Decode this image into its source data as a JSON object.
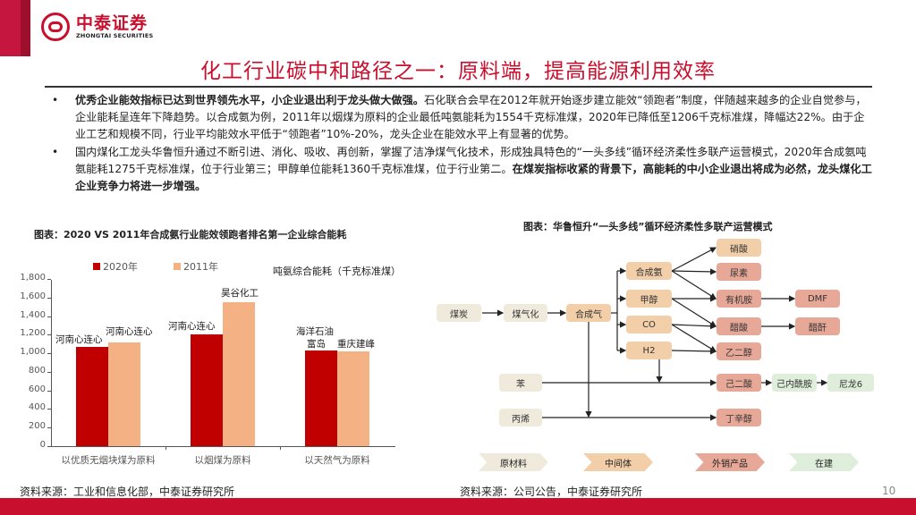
{
  "brand": {
    "name_cn": "中泰证券",
    "name_en": "ZHONGTAI SECURITIES",
    "colors": {
      "primary": "#c8102e",
      "dark_bar": "#9e0f2e",
      "bar_2020": "#c00000",
      "bar_2011": "#f4b183"
    }
  },
  "page": {
    "title": "化工行业碳中和路径之一：原料端，提高能源利用效率",
    "page_number": "10"
  },
  "bullets": [
    {
      "bold": "优秀企业能效指标已达到世界领先水平，小企业退出利于龙头做大做强。",
      "text": "石化联合会早在2012年就开始逐步建立能效“领跑者”制度，伴随越来越多的企业自觉参与，企业能耗呈连年下降趋势。以合成氨为例，2011年以烟煤为原料的企业最低吨氨能耗为1554千克标准煤，2020年已降低至1206千克标准煤，降幅达22%。由于企业工艺和规模不同，行业平均能效水平低于“领跑者”10%-20%，龙头企业在能效水平上有显著的优势。",
      "text_after": "",
      "bold_after": ""
    },
    {
      "bold": "",
      "text": "国内煤化工龙头华鲁恒升通过不断引进、消化、吸收、再创新，掌握了洁净煤气化技术，形成独具特色的“一头多线”循环经济柔性多联产运营模式，2020年合成氨吨氨能耗1275千克标准煤，位于行业第三；甲醇单位能耗1360千克标准煤，位于行业第二。",
      "bold_after": "在煤炭指标收紧的背景下，高能耗的中小企业退出将成为必然，龙头煤化工企业竞争力将进一步增强。",
      "text_after": ""
    }
  ],
  "left_figure": {
    "title": "图表：2020 VS 2011年合成氨行业能效领跑者排名第一企业综合能耗",
    "source": "资料来源：工业和信息化部，中泰证券研究所"
  },
  "right_figure": {
    "title": "图表：华鲁恒升“一头多线”循环经济柔性多联产运营模式",
    "source": "资料来源：公司公告，中泰证券研究所"
  },
  "chart_data": {
    "type": "bar",
    "title": "2020 VS 2011年合成氨行业能效领跑者排名第一企业综合能耗",
    "xlabel": "",
    "ylabel": "吨氨综合能耗（千克标准煤）",
    "ylim": [
      0,
      1800
    ],
    "yticks": [
      "0",
      "200",
      "400",
      "600",
      "800",
      "1,000",
      "1,200",
      "1,400",
      "1,600",
      "1,800"
    ],
    "categories": [
      "以优质无烟块煤为原料",
      "以烟煤为原料",
      "以天然气为原料"
    ],
    "legend": [
      "2020年",
      "2011年"
    ],
    "legend_position": "top",
    "grid": false,
    "series": [
      {
        "name": "2020年",
        "color": "#c00000",
        "values": [
          1070,
          1206,
          1030
        ],
        "labels": [
          "河南心连心",
          "河南心连心",
          "海洋石油富岛"
        ]
      },
      {
        "name": "2011年",
        "color": "#f4b183",
        "values": [
          1115,
          1554,
          1022
        ],
        "labels": [
          "河南心连心",
          "昊谷化工",
          "重庆建峰"
        ]
      }
    ]
  },
  "flow": {
    "nodes": {
      "coal": "煤炭",
      "gasify": "煤气化",
      "syngas": "合成气",
      "ammonia": "合成氨",
      "methanol": "甲醇",
      "co": "CO",
      "h2": "H2",
      "nitric": "硝酸",
      "urea": "尿素",
      "organic_amine": "有机胺",
      "acetic": "醋酸",
      "eg": "乙二醇",
      "dmf": "DMF",
      "vinegar_other": "醋酐",
      "benzene": "苯",
      "propylene": "丙烯",
      "adipic": "己二酸",
      "caprolactam": "己内酰胺",
      "nylon6": "尼龙6",
      "octanol": "丁辛醇"
    },
    "legend": [
      "原材料",
      "中间体",
      "外销产品",
      "在建"
    ]
  }
}
